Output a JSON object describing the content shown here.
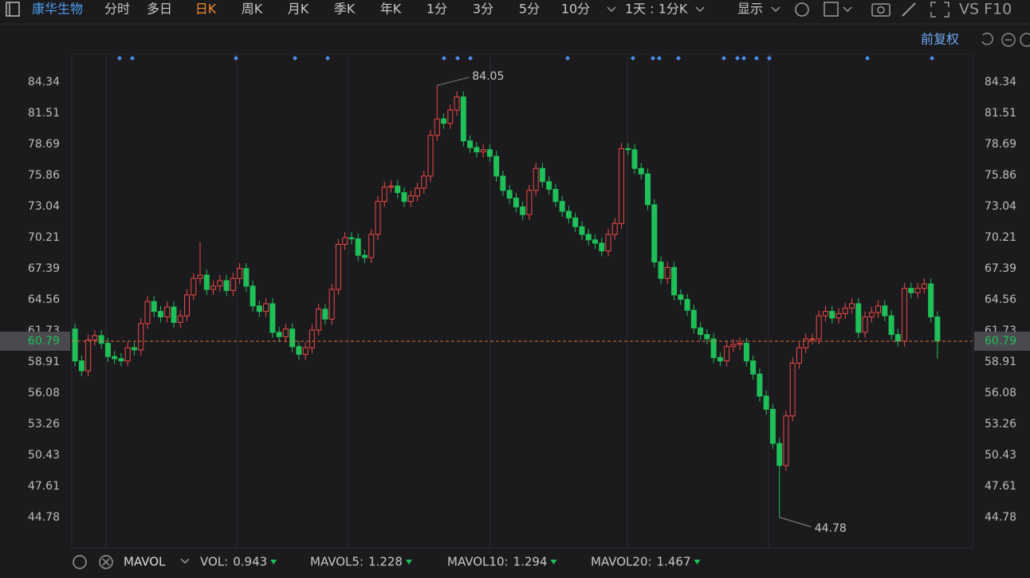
{
  "toolbar": {
    "stock": "康华生物",
    "tabs": [
      "分时",
      "多日",
      "日K",
      "周K",
      "月K",
      "季K",
      "年K",
      "1分",
      "3分",
      "5分",
      "10分"
    ],
    "active_tab": 2,
    "period": "1天 : 1分K",
    "display": "显示",
    "vs_f10": "VS F10",
    "adjust": "前复权"
  },
  "chart_data": {
    "type": "candlestick",
    "up_color": "#f04848",
    "down_color": "#1fc05a",
    "grid": false,
    "ylim": [
      42.02,
      86.88
    ],
    "yticks": [
      84.34,
      81.51,
      78.69,
      75.86,
      73.04,
      70.21,
      67.39,
      64.56,
      61.73,
      58.91,
      56.08,
      53.26,
      50.43,
      47.61,
      44.78
    ],
    "last_price": 60.79,
    "high_index": 55,
    "low_index": 107,
    "open": [
      61.9,
      59.0,
      58.1,
      60.9,
      61.3,
      60.6,
      59.4,
      59.2,
      59.0,
      60.2,
      60.0,
      62.4,
      64.4,
      63.5,
      63.0,
      63.9,
      62.5,
      63.1,
      65.0,
      66.5,
      66.8,
      65.5,
      65.8,
      66.3,
      65.4,
      66.5,
      67.4,
      65.8,
      64.0,
      63.5,
      64.2,
      61.6,
      61.2,
      61.9,
      60.3,
      59.6,
      60.2,
      61.8,
      63.7,
      62.8,
      65.5,
      69.6,
      70.2,
      70.1,
      68.6,
      68.4,
      70.5,
      73.5,
      74.8,
      74.9,
      74.3,
      73.5,
      74.0,
      74.7,
      75.8,
      79.5,
      81.0,
      80.6,
      81.8,
      83.0,
      79.0,
      78.4,
      78.0,
      78.2,
      77.6,
      75.8,
      74.5,
      73.8,
      73.0,
      72.3,
      74.5,
      76.5,
      75.3,
      74.6,
      73.5,
      72.6,
      72.0,
      71.2,
      70.5,
      70.0,
      69.7,
      69.0,
      70.5,
      71.5,
      78.3,
      78.2,
      76.5,
      76.0,
      73.2,
      68.0,
      66.5,
      67.5,
      65.0,
      64.6,
      63.6,
      62.0,
      61.4,
      61.0,
      59.3,
      59.0,
      60.3,
      60.5,
      60.6,
      59.0,
      57.8,
      55.8,
      54.6,
      51.5,
      49.5,
      54.0,
      58.8,
      60.2,
      61.0,
      61.0,
      63.1,
      63.5,
      62.9,
      63.3,
      63.8,
      64.2,
      61.6,
      63.0,
      63.4,
      64.0,
      63.1,
      61.4,
      60.8,
      65.6,
      65.2,
      65.6,
      66.0,
      63.0
    ],
    "high": [
      62.4,
      59.5,
      61.4,
      61.8,
      61.8,
      61.1,
      59.9,
      59.7,
      60.7,
      60.7,
      62.9,
      64.9,
      64.9,
      64.0,
      64.4,
      64.4,
      63.6,
      65.5,
      67.0,
      69.8,
      67.3,
      66.3,
      66.8,
      66.8,
      67.0,
      67.9,
      67.9,
      66.3,
      64.5,
      64.7,
      64.7,
      62.1,
      62.4,
      62.4,
      60.8,
      60.7,
      62.3,
      64.2,
      64.2,
      66.0,
      70.1,
      70.7,
      70.7,
      70.6,
      69.1,
      71.0,
      74.0,
      75.3,
      75.4,
      75.4,
      74.8,
      74.5,
      75.2,
      76.3,
      80.0,
      84.05,
      81.5,
      82.3,
      83.5,
      83.5,
      79.5,
      78.9,
      78.7,
      78.7,
      78.1,
      76.3,
      75.0,
      74.3,
      73.5,
      75.0,
      77.0,
      77.0,
      75.8,
      75.1,
      74.0,
      73.1,
      72.5,
      71.7,
      71.0,
      70.5,
      70.2,
      71.0,
      72.0,
      78.8,
      78.8,
      78.7,
      77.0,
      76.5,
      73.7,
      68.5,
      68.0,
      68.0,
      65.5,
      65.1,
      64.1,
      62.5,
      61.9,
      61.5,
      59.8,
      60.8,
      61.0,
      61.1,
      61.1,
      59.5,
      58.3,
      56.3,
      55.1,
      52.0,
      54.5,
      59.3,
      60.7,
      61.5,
      61.5,
      63.6,
      64.0,
      64.0,
      63.8,
      64.3,
      64.7,
      64.7,
      63.5,
      63.9,
      64.5,
      64.5,
      63.6,
      61.9,
      66.1,
      66.1,
      66.1,
      66.5,
      66.5,
      63.5
    ],
    "low": [
      58.5,
      57.6,
      57.6,
      60.4,
      60.1,
      58.9,
      58.7,
      58.5,
      58.5,
      59.5,
      59.5,
      61.9,
      63.0,
      62.5,
      62.5,
      62.0,
      62.0,
      62.6,
      64.5,
      66.0,
      65.0,
      65.0,
      65.3,
      64.9,
      64.9,
      66.0,
      65.3,
      63.5,
      63.0,
      63.0,
      61.1,
      60.7,
      60.7,
      59.8,
      59.1,
      59.1,
      59.7,
      61.3,
      62.3,
      62.3,
      65.0,
      69.1,
      69.6,
      68.1,
      67.9,
      67.9,
      70.0,
      73.0,
      74.3,
      73.8,
      73.0,
      73.0,
      73.5,
      74.2,
      75.3,
      79.0,
      80.1,
      80.1,
      81.3,
      78.5,
      77.9,
      77.5,
      77.5,
      77.1,
      75.3,
      74.0,
      73.3,
      72.5,
      71.8,
      71.8,
      74.0,
      74.8,
      74.1,
      73.0,
      72.1,
      71.5,
      70.7,
      70.0,
      69.5,
      69.2,
      68.5,
      68.5,
      70.0,
      71.0,
      77.7,
      76.0,
      75.5,
      72.7,
      67.5,
      66.0,
      66.0,
      64.5,
      64.1,
      63.1,
      61.5,
      60.9,
      60.5,
      58.8,
      58.5,
      58.5,
      59.8,
      60.0,
      58.5,
      57.3,
      55.3,
      54.1,
      51.0,
      44.78,
      49.0,
      53.5,
      58.3,
      59.7,
      60.5,
      60.5,
      62.6,
      62.4,
      62.4,
      62.8,
      63.3,
      61.1,
      61.1,
      62.5,
      62.9,
      62.6,
      60.9,
      60.3,
      60.3,
      64.7,
      64.7,
      65.1,
      62.5,
      59.2
    ],
    "close": [
      59.0,
      58.1,
      60.9,
      61.3,
      60.6,
      59.4,
      59.2,
      59.0,
      60.2,
      60.0,
      62.4,
      64.4,
      63.5,
      63.0,
      63.9,
      62.5,
      63.1,
      65.0,
      66.5,
      66.8,
      65.5,
      65.8,
      66.3,
      65.4,
      66.5,
      67.4,
      65.8,
      64.0,
      63.5,
      64.2,
      61.6,
      61.2,
      61.9,
      60.3,
      59.6,
      60.2,
      61.8,
      63.7,
      62.8,
      65.5,
      69.6,
      70.2,
      70.1,
      68.6,
      68.4,
      70.5,
      73.5,
      74.8,
      74.9,
      74.3,
      73.5,
      74.0,
      74.7,
      75.8,
      79.5,
      81.0,
      80.6,
      81.8,
      83.0,
      79.0,
      78.4,
      78.0,
      78.2,
      77.6,
      75.8,
      74.5,
      73.8,
      73.0,
      72.3,
      74.5,
      76.5,
      75.3,
      74.6,
      73.5,
      72.6,
      72.0,
      71.2,
      70.5,
      70.0,
      69.7,
      69.0,
      70.5,
      71.5,
      78.3,
      78.2,
      76.5,
      76.0,
      73.2,
      68.0,
      66.5,
      67.5,
      65.0,
      64.6,
      63.6,
      62.0,
      61.4,
      61.0,
      59.3,
      59.0,
      60.3,
      60.5,
      60.6,
      59.0,
      57.8,
      55.8,
      54.6,
      51.5,
      49.5,
      54.0,
      58.8,
      60.2,
      61.0,
      61.0,
      63.1,
      63.5,
      62.9,
      63.3,
      63.8,
      64.2,
      61.6,
      63.0,
      63.4,
      64.0,
      63.1,
      61.4,
      60.8,
      65.6,
      65.2,
      65.6,
      66.0,
      63.0,
      60.8
    ]
  },
  "indicator_bar": {
    "name": "MAVOL",
    "items": [
      {
        "label": "VOL:",
        "value": "0.943",
        "color": "#f05a5a"
      },
      {
        "label": "MAVOL5:",
        "value": "1.228",
        "color": "#f0883c"
      },
      {
        "label": "MAVOL10:",
        "value": "1.294",
        "color": "#3aa8e0"
      },
      {
        "label": "MAVOL20:",
        "value": "1.467",
        "color": "#d070e0"
      }
    ]
  }
}
